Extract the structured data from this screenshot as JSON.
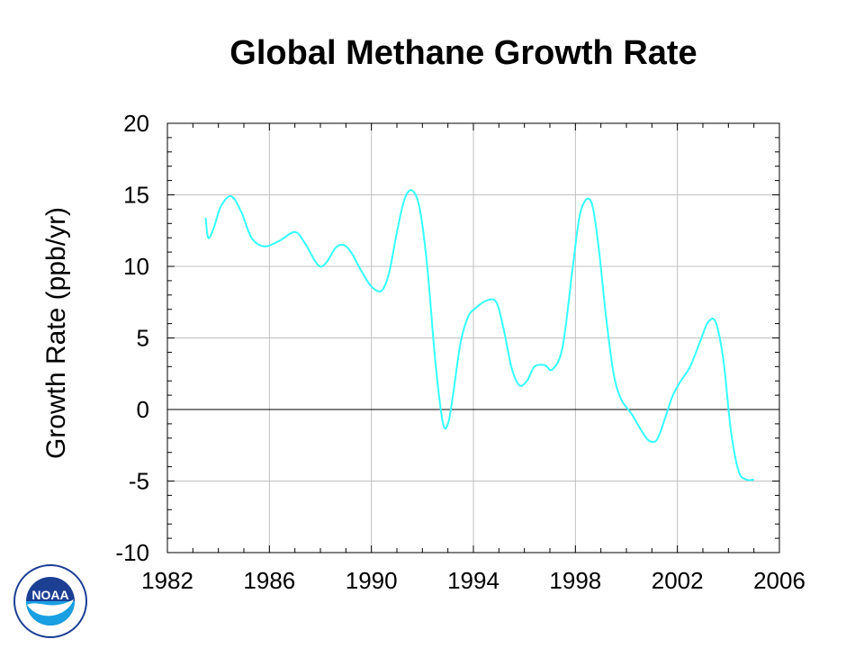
{
  "chart_data": {
    "type": "line",
    "title": "Global Methane Growth Rate",
    "xlabel": "",
    "ylabel": "Growth Rate (ppb/yr)",
    "xlim": [
      1982,
      2006
    ],
    "ylim": [
      -10,
      20
    ],
    "x_ticks": [
      1982,
      1986,
      1990,
      1994,
      1998,
      2002,
      2006
    ],
    "y_ticks": [
      20,
      15,
      10,
      5,
      0,
      -5,
      -10
    ],
    "grid": true,
    "line_color": "#33ffff",
    "series": [
      {
        "x": [
          1983.5,
          1983.6,
          1983.8,
          1984.1,
          1984.5,
          1984.9,
          1985.3,
          1985.8,
          1986.4,
          1987.0,
          1987.4,
          1987.9,
          1988.2,
          1988.6,
          1988.9,
          1989.2,
          1989.6,
          1990.0,
          1990.4,
          1990.7,
          1991.0,
          1991.3,
          1991.6,
          1991.9,
          1992.2,
          1992.5,
          1992.8,
          1993.0,
          1993.2,
          1993.5,
          1993.8,
          1994.1,
          1994.5,
          1994.9,
          1995.2,
          1995.5,
          1995.8,
          1996.1,
          1996.4,
          1996.8,
          1997.1,
          1997.5,
          1997.9,
          1998.2,
          1998.6,
          1998.9,
          1999.2,
          1999.5,
          1999.8,
          2000.2,
          2000.6,
          2000.9,
          2001.2,
          2001.5,
          2001.8,
          2002.1,
          2002.5,
          2002.9,
          2003.2,
          2003.5,
          2003.8,
          2004.1,
          2004.4,
          2004.7,
          2005.0
        ],
        "y": [
          13.4,
          12.0,
          12.6,
          14.2,
          14.9,
          13.8,
          12.0,
          11.4,
          11.8,
          12.4,
          11.6,
          10.1,
          10.2,
          11.3,
          11.5,
          11.0,
          9.7,
          8.6,
          8.3,
          9.6,
          12.4,
          14.7,
          15.3,
          14.0,
          9.8,
          3.5,
          -0.9,
          -1.0,
          1.0,
          4.7,
          6.5,
          7.1,
          7.6,
          7.5,
          5.5,
          2.9,
          1.7,
          2.0,
          3.0,
          3.1,
          2.8,
          4.4,
          10.0,
          13.8,
          14.6,
          11.5,
          6.5,
          2.5,
          0.7,
          -0.3,
          -1.5,
          -2.2,
          -2.1,
          -0.7,
          0.9,
          1.9,
          3.0,
          4.8,
          6.1,
          6.1,
          3.5,
          -1.5,
          -4.3,
          -4.9,
          -4.9
        ]
      }
    ]
  },
  "logo": {
    "text": "NOAA",
    "primary": "#1c3f94",
    "secondary": "#19a0e2"
  }
}
